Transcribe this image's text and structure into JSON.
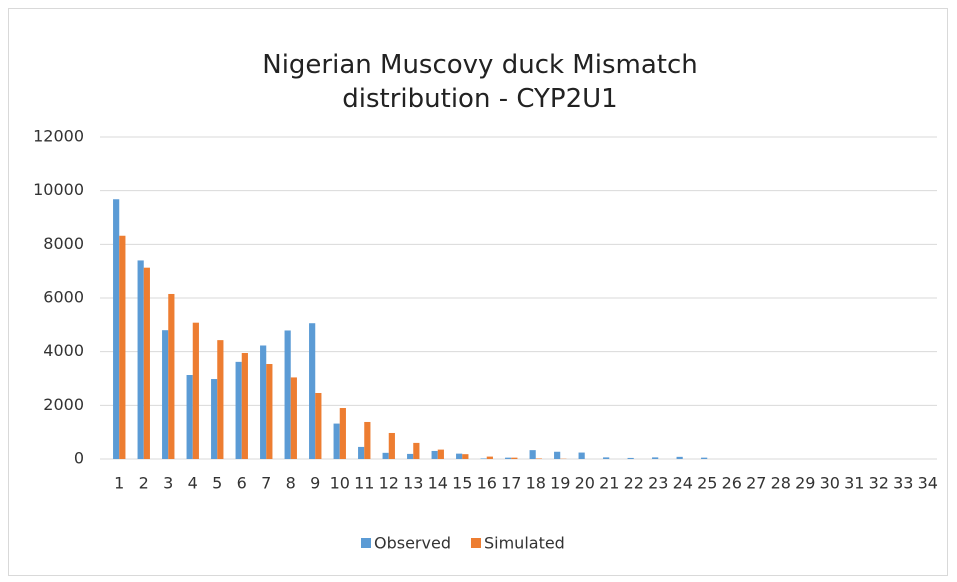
{
  "chart_data": {
    "type": "bar",
    "title": "Nigerian Muscovy duck Mismatch distribution - CYP2U1",
    "categories": [
      "1",
      "2",
      "3",
      "4",
      "5",
      "6",
      "7",
      "8",
      "9",
      "10",
      "11",
      "12",
      "13",
      "14",
      "15",
      "16",
      "17",
      "18",
      "19",
      "20",
      "21",
      "22",
      "23",
      "24",
      "25",
      "26",
      "27",
      "28",
      "29",
      "30",
      "31",
      "32",
      "33",
      "34"
    ],
    "series": [
      {
        "name": "Observed",
        "color": "#5b9bd5",
        "values": [
          9680,
          7400,
          4800,
          3130,
          2980,
          3620,
          4230,
          4790,
          5060,
          1320,
          450,
          230,
          190,
          300,
          200,
          20,
          50,
          330,
          270,
          240,
          60,
          40,
          60,
          80,
          50,
          0,
          0,
          0,
          0,
          0,
          0,
          0,
          0,
          0
        ]
      },
      {
        "name": "Simulated",
        "color": "#ed7d31",
        "values": [
          8320,
          7130,
          6150,
          5080,
          4430,
          3950,
          3540,
          3040,
          2460,
          1900,
          1380,
          970,
          600,
          350,
          180,
          90,
          50,
          20,
          10,
          0,
          0,
          0,
          0,
          0,
          0,
          0,
          0,
          0,
          0,
          0,
          0,
          0,
          0,
          0
        ]
      }
    ],
    "ylim": [
      0,
      12000
    ],
    "yticks": [
      0,
      2000,
      4000,
      6000,
      8000,
      10000,
      12000
    ],
    "grid": true,
    "legend": "bottom"
  }
}
